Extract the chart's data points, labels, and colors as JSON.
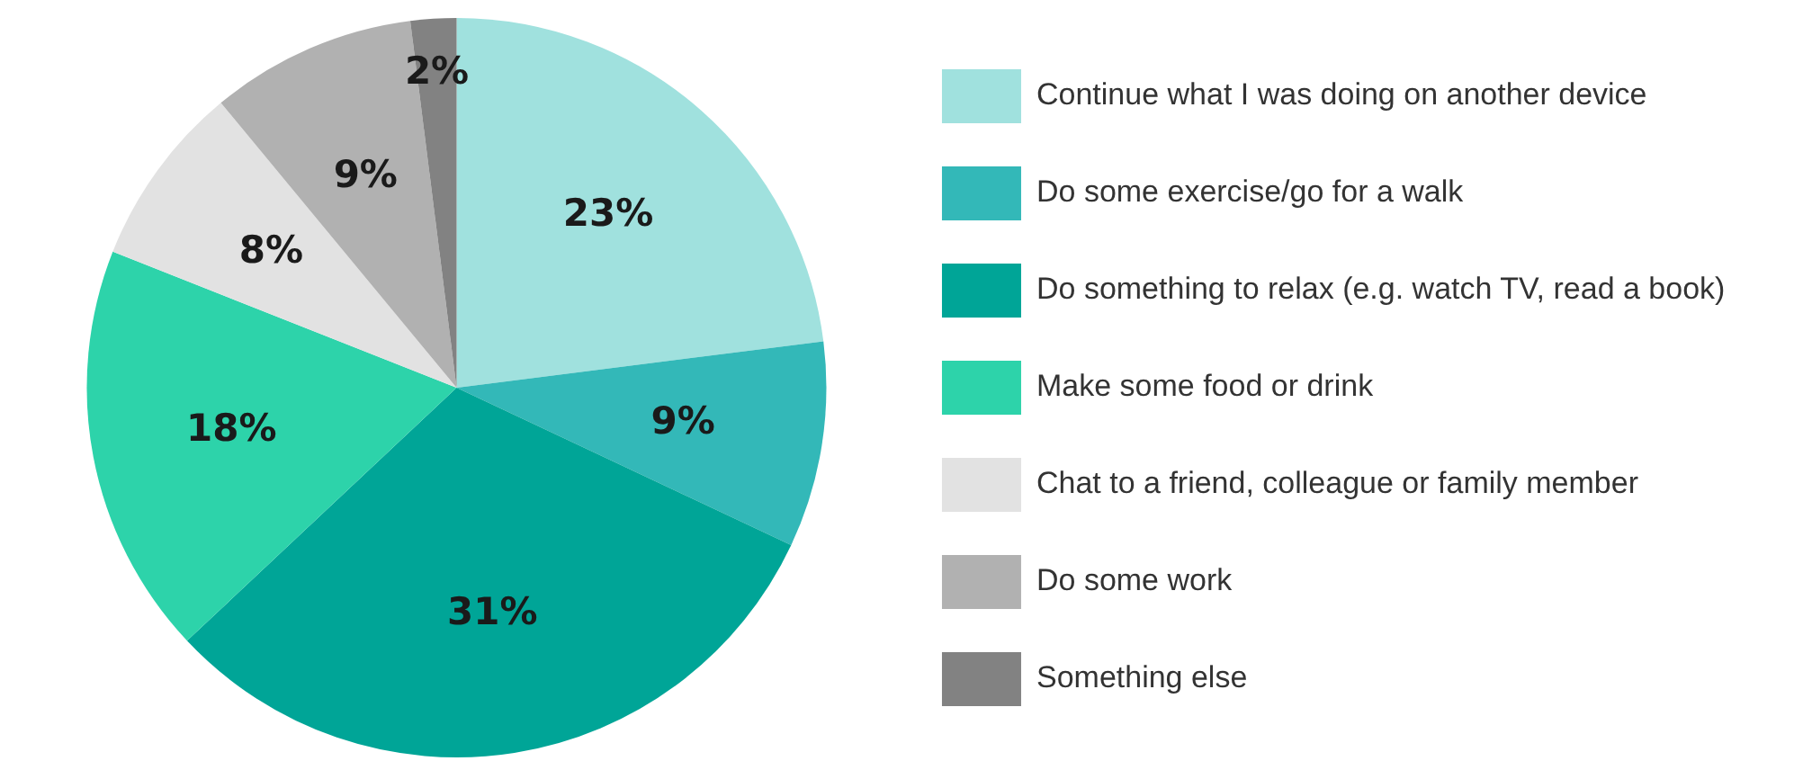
{
  "chart_data": {
    "type": "pie",
    "categories": [
      "Continue what I was doing on another device",
      "Do some exercise/go for a walk",
      "Do something to relax (e.g. watch TV, read a book)",
      "Make some food or drink",
      "Chat to a friend, colleague or family member",
      "Do some work",
      "Something else"
    ],
    "values": [
      23,
      9,
      31,
      18,
      8,
      9,
      2
    ],
    "value_labels": [
      "23%",
      "9%",
      "31%",
      "18%",
      "8%",
      "9%",
      "2%"
    ],
    "colors": [
      "#a0e1de",
      "#33b8b8",
      "#00a597",
      "#2dd3aa",
      "#e2e2e2",
      "#b1b1b1",
      "#828282"
    ],
    "legend": "right"
  }
}
